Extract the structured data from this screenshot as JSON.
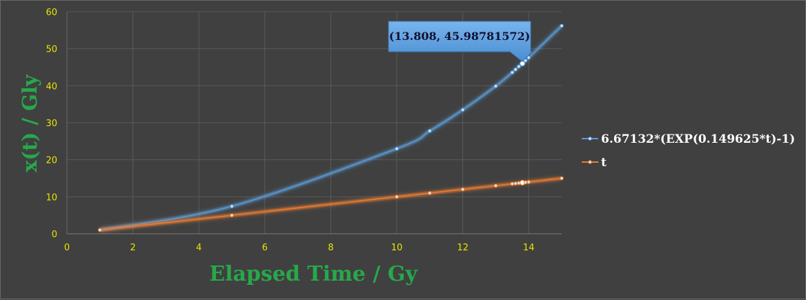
{
  "chart_data": {
    "type": "scatter",
    "xlabel": "Elapsed Time / Gy",
    "ylabel": "x(t) / Gly",
    "xlim": [
      0,
      15
    ],
    "ylim": [
      0,
      60
    ],
    "x_ticks": [
      0,
      2,
      4,
      6,
      8,
      10,
      12,
      14
    ],
    "y_ticks": [
      0,
      10,
      20,
      30,
      40,
      50,
      60
    ],
    "grid": true,
    "legend_position": "right",
    "series": [
      {
        "name": "6.67132*(EXP(0.149625*t)-1)",
        "color": "#5b9bd5",
        "x": [
          1,
          5,
          10,
          11,
          12,
          13,
          13.5,
          13.6,
          13.7,
          13.8,
          13.808,
          13.9,
          14,
          15
        ],
        "y": [
          1.08,
          7.44,
          23.0,
          27.8,
          33.5,
          39.9,
          43.6,
          44.4,
          45.2,
          46.0,
          45.99,
          46.8,
          47.6,
          56.2
        ]
      },
      {
        "name": "t",
        "color": "#ed7d31",
        "x": [
          1,
          5,
          10,
          11,
          12,
          13,
          13.5,
          13.6,
          13.7,
          13.8,
          13.808,
          13.9,
          14,
          15
        ],
        "y": [
          1,
          5,
          10,
          11,
          12,
          13,
          13.5,
          13.6,
          13.7,
          13.8,
          13.808,
          13.9,
          14,
          15
        ]
      }
    ],
    "annotation": {
      "text": "(13.808, 45.98781572)",
      "x": 13.808,
      "y": 45.98781572
    }
  }
}
